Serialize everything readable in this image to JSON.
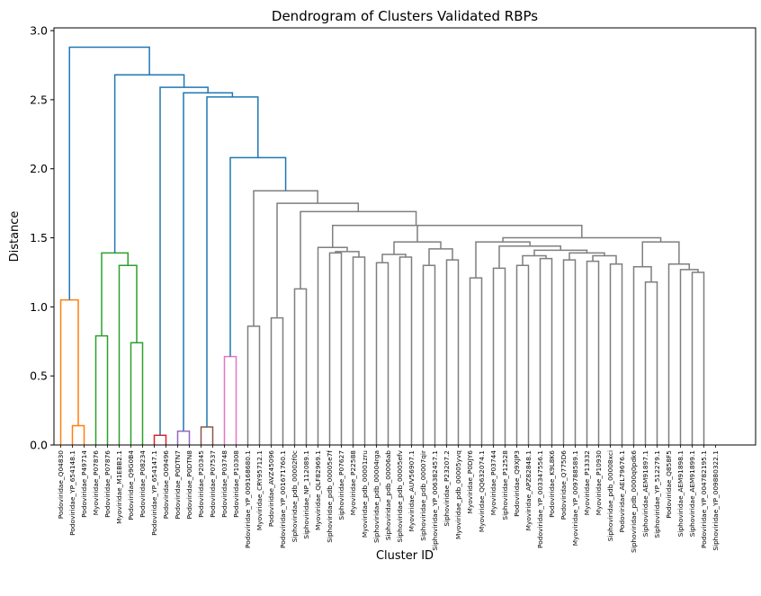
{
  "chart_data": {
    "type": "dendrogram",
    "title": "Dendrogram of Clusters Validated RBPs",
    "xlabel": "Cluster ID",
    "ylabel": "Distance",
    "ylim": [
      0,
      3.02
    ],
    "yticks": [
      "0.0",
      "0.5",
      "1.0",
      "1.5",
      "2.0",
      "2.5",
      "3.0"
    ],
    "leaves": [
      "Podoviridae_Q04830",
      "Podoviridae_YP_654148.1",
      "Podoviridae_P49714",
      "Myoviridae_P07876",
      "Podoviridae_P07876",
      "Myoviridae_M1EBB2.1",
      "Podoviridae_Q9G0B4",
      "Podoviridae_P08234",
      "Podoviridae_YP_654147.1",
      "Podoviridae_O09496",
      "Podoviridae_P0DTN7",
      "Podoviridae_P0DTN8",
      "Podoviridae_P20345",
      "Podoviridae_P07537",
      "Podoviridae_P03748",
      "Podoviridae_P10308",
      "Podoviridae_YP_009168680.1",
      "Myoviridae_CRY95712.1",
      "Podoviridae_AVZ45096",
      "Podoviridae_YP_001671760.1",
      "Siphoviridae_pdb_00002f0c",
      "Siphoviridae_NP_112089.1",
      "Myoviridae_QLF82969.1",
      "Siphoviridae_pdb_00005e7f",
      "Siphoviridae_P07627",
      "Myoviridae_P22588",
      "Myoviridae_pdb_00001zru",
      "Siphoviridae_pdb_00004rga",
      "Siphoviridae_pdb_00006ab",
      "Siphoviridae_pdb_00005efv",
      "Myoviridae_AUV56907.1",
      "Siphoviridae_pdb_00007qir",
      "Siphoviridae_YP_006382457.1",
      "Siphoviridae_P23207.2",
      "Myoviridae_pdb_00005yvq",
      "Myoviridae_P0DJY6",
      "Myoviridae_QQ632074.1",
      "Myoviridae_P03744",
      "Siphoviridae_P12528",
      "Podoviridae_Q9XJP3",
      "Myoviridae_APZ82848.1",
      "Podoviridae_YP_003347556.1",
      "Podoviridae_K9L8K6",
      "Podoviridae_Q775D6",
      "Myoviridae_YP_009788589.1",
      "Myoviridae_P13332",
      "Myoviridae_P10930",
      "Siphoviridae_pdb_00008xci",
      "Podoviridae_AEL79676.1",
      "Siphoviridae_pdb_0000q0pdk6",
      "Siphoviridae_AEM91897.1",
      "Siphoviridae_YP_512279.1",
      "Podoviridae_Q858F5",
      "Siphoviridae_AEM91898.1",
      "Siphoviridae_AEM91899.1",
      "Podoviridae_YP_004782195.1",
      "Siphoviridae_YP_009880322.1"
    ],
    "links": [
      {
        "l": 1,
        "r": 2,
        "h": 0.14,
        "c": "#ff7f0e"
      },
      {
        "l": 0,
        "r": 1.5,
        "h": 1.05,
        "c": "#ff7f0e"
      },
      {
        "l": 6,
        "r": 7,
        "h": 0.74,
        "c": "#2ca02c"
      },
      {
        "l": 5,
        "r": 6.5,
        "h": 1.3,
        "c": "#2ca02c"
      },
      {
        "l": 3,
        "r": 4,
        "h": 0.79,
        "c": "#2ca02c"
      },
      {
        "l": 3.5,
        "r": 5.75,
        "h": 1.39,
        "c": "#2ca02c"
      },
      {
        "l": 8,
        "r": 9,
        "h": 0.07,
        "c": "#d62728"
      },
      {
        "l": 10,
        "r": 11,
        "h": 0.1,
        "c": "#9467bd"
      },
      {
        "l": 12,
        "r": 13,
        "h": 0.13,
        "c": "#8c564b"
      },
      {
        "l": 14,
        "r": 15,
        "h": 0.64,
        "c": "#e377c2"
      },
      {
        "l": 16,
        "r": 17,
        "h": 0.86,
        "c": "#7f7f7f"
      },
      {
        "l": 18,
        "r": 19,
        "h": 0.92,
        "c": "#7f7f7f"
      },
      {
        "l": 20,
        "r": 21,
        "h": 1.13,
        "c": "#7f7f7f"
      },
      {
        "l": 23,
        "r": 24,
        "h": 1.39,
        "c": "#7f7f7f"
      },
      {
        "l": 25,
        "r": 26,
        "h": 1.36,
        "c": "#7f7f7f"
      },
      {
        "l": 23.5,
        "r": 25.5,
        "h": 1.4,
        "c": "#7f7f7f"
      },
      {
        "l": 22,
        "r": 24.5,
        "h": 1.43,
        "c": "#7f7f7f"
      },
      {
        "l": 29,
        "r": 30,
        "h": 1.36,
        "c": "#7f7f7f"
      },
      {
        "l": 27,
        "r": 28,
        "h": 1.32,
        "c": "#7f7f7f"
      },
      {
        "l": 27.5,
        "r": 29.5,
        "h": 1.38,
        "c": "#7f7f7f"
      },
      {
        "l": 31,
        "r": 32,
        "h": 1.3,
        "c": "#7f7f7f"
      },
      {
        "l": 33,
        "r": 34,
        "h": 1.34,
        "c": "#7f7f7f"
      },
      {
        "l": 31.5,
        "r": 33.5,
        "h": 1.42,
        "c": "#7f7f7f"
      },
      {
        "l": 28.5,
        "r": 32.5,
        "h": 1.47,
        "c": "#7f7f7f"
      },
      {
        "l": 35,
        "r": 36,
        "h": 1.21,
        "c": "#7f7f7f"
      },
      {
        "l": 37,
        "r": 38,
        "h": 1.28,
        "c": "#7f7f7f"
      },
      {
        "l": 39,
        "r": 40,
        "h": 1.3,
        "c": "#7f7f7f"
      },
      {
        "l": 41,
        "r": 42,
        "h": 1.35,
        "c": "#7f7f7f"
      },
      {
        "l": 39.5,
        "r": 41.5,
        "h": 1.37,
        "c": "#7f7f7f"
      },
      {
        "l": 43,
        "r": 44,
        "h": 1.34,
        "c": "#7f7f7f"
      },
      {
        "l": 45,
        "r": 46,
        "h": 1.33,
        "c": "#7f7f7f"
      },
      {
        "l": 47,
        "r": 48,
        "h": 1.31,
        "c": "#7f7f7f"
      },
      {
        "l": 45.5,
        "r": 47.5,
        "h": 1.37,
        "c": "#7f7f7f"
      },
      {
        "l": 43.5,
        "r": 46.5,
        "h": 1.39,
        "c": "#7f7f7f"
      },
      {
        "l": 40.5,
        "r": 45,
        "h": 1.41,
        "c": "#7f7f7f"
      },
      {
        "l": 37.5,
        "r": 42.75,
        "h": 1.44,
        "c": "#7f7f7f"
      },
      {
        "l": 35.5,
        "r": 40.125,
        "h": 1.47,
        "c": "#7f7f7f"
      },
      {
        "l": 50,
        "r": 51,
        "h": 1.18,
        "c": "#7f7f7f"
      },
      {
        "l": 49,
        "r": 50.5,
        "h": 1.29,
        "c": "#7f7f7f"
      },
      {
        "l": 54,
        "r": 55,
        "h": 1.25,
        "c": "#7f7f7f"
      },
      {
        "l": 53,
        "r": 54.5,
        "h": 1.27,
        "c": "#7f7f7f"
      },
      {
        "l": 52,
        "r": 53.75,
        "h": 1.31,
        "c": "#7f7f7f"
      },
      {
        "l": 49.75,
        "r": 52.875,
        "h": 1.47,
        "c": "#7f7f7f"
      },
      {
        "l": 37.8125,
        "r": 51.3125,
        "h": 1.5,
        "c": "#7f7f7f"
      },
      {
        "l": 30.5,
        "r": 44.5625,
        "h": 1.59,
        "c": "#7f7f7f"
      },
      {
        "l": 23.25,
        "r": 37.53125,
        "h": 1.59,
        "c": "#7f7f7f"
      },
      {
        "l": 20.5,
        "r": 30.390625,
        "h": 1.69,
        "c": "#7f7f7f"
      },
      {
        "l": 18.5,
        "r": 25.4453125,
        "h": 1.75,
        "c": "#7f7f7f"
      },
      {
        "l": 16.5,
        "r": 21.97265625,
        "h": 1.84,
        "c": "#7f7f7f"
      },
      {
        "l": 14.5,
        "r": 19.236328125,
        "h": 2.08,
        "c": "#1f77b4"
      },
      {
        "l": 12.5,
        "r": 16.8681640625,
        "h": 2.52,
        "c": "#1f77b4"
      },
      {
        "l": 10.5,
        "r": 14.68408203125,
        "h": 2.55,
        "c": "#1f77b4"
      },
      {
        "l": 8.5,
        "r": 12.592041015625,
        "h": 2.59,
        "c": "#1f77b4"
      },
      {
        "l": 4.625,
        "r": 10.5460205078125,
        "h": 2.68,
        "c": "#1f77b4"
      },
      {
        "l": 0.75,
        "r": 7.58551025390625,
        "h": 2.88,
        "c": "#1f77b4"
      }
    ]
  }
}
